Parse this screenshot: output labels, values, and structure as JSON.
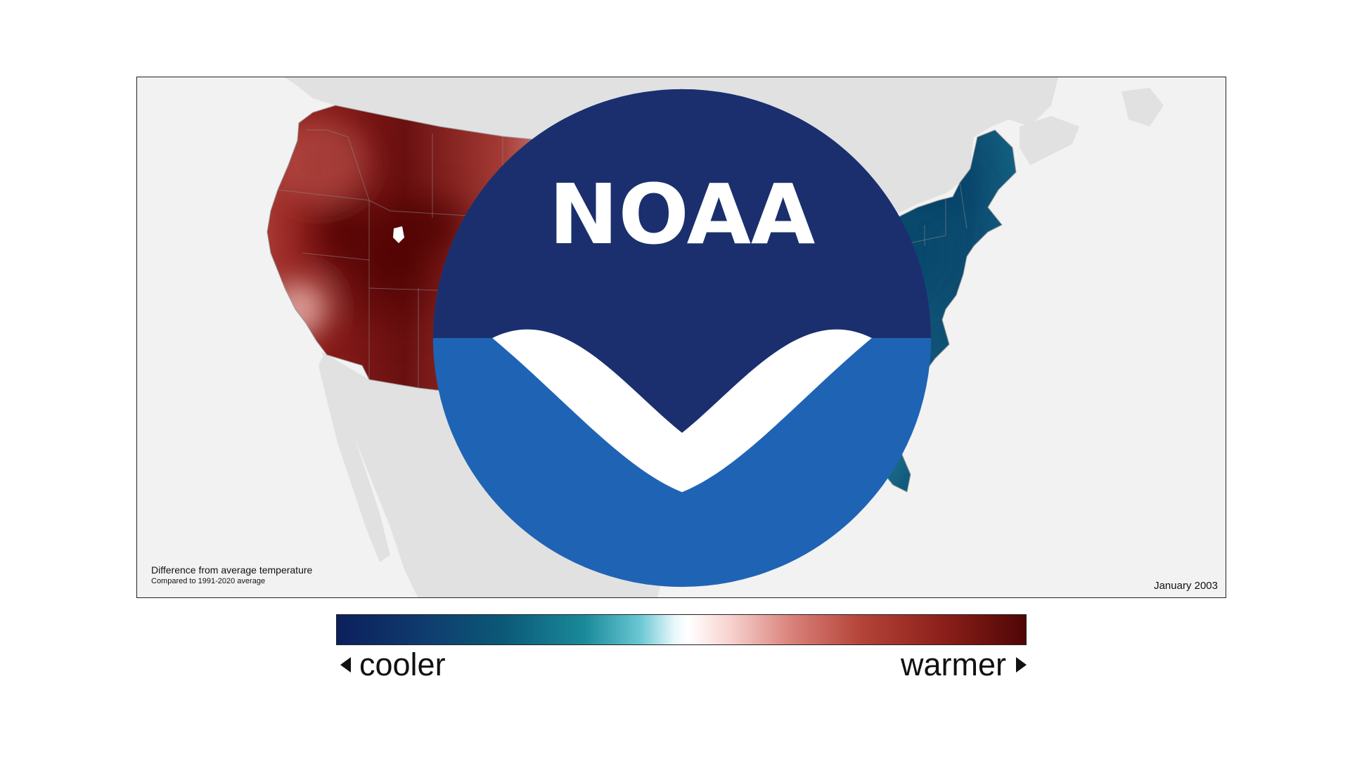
{
  "map": {
    "caption_title": "Difference from average temperature",
    "caption_subtitle": "Compared to 1991-2020 average",
    "date": "January 2003",
    "logo_text": "NOAA",
    "colors": {
      "ocean": "#f2f2f2",
      "neighbor_land": "#e1e1e1",
      "very_warm": "#5a0808",
      "warm": "#a83a33",
      "slightly_warm": "#f0c1bb",
      "neutral": "#f6fbfc",
      "slightly_cool": "#74c7d1",
      "cool": "#1d7f96",
      "very_cool": "#0b4d72"
    }
  },
  "legend": {
    "cooler_label": "cooler",
    "warmer_label": "warmer",
    "colors": [
      "#0c1f5c",
      "#0b5877",
      "#6ac7d3",
      "#ffffff",
      "#d9817a",
      "#8c1f1a",
      "#4f0606"
    ]
  }
}
